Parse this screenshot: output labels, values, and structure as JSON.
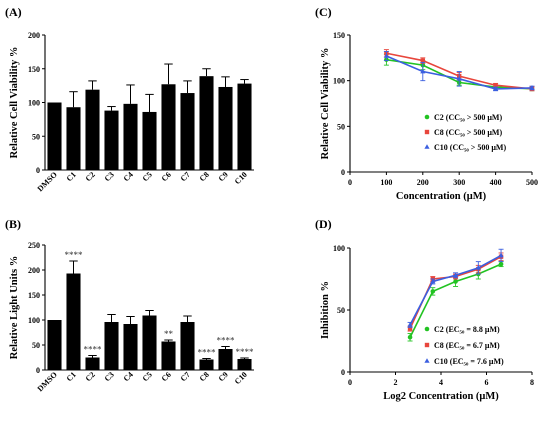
{
  "chart_data": [
    {
      "panel": "(A)",
      "type": "bar",
      "ylabel": "Relative Cell Viability %",
      "ylim": [
        0,
        200
      ],
      "yticks": [
        0,
        50,
        100,
        150,
        200
      ],
      "categories": [
        "DMSO",
        "C1",
        "C2",
        "C3",
        "C4",
        "C5",
        "C6",
        "C7",
        "C8",
        "C9",
        "C10"
      ],
      "values": [
        100,
        93,
        119,
        88,
        98,
        86,
        127,
        114,
        139,
        123,
        128
      ],
      "errors": [
        0,
        23,
        13,
        6,
        28,
        26,
        30,
        18,
        11,
        15,
        6
      ]
    },
    {
      "panel": "(B)",
      "type": "bar",
      "ylabel": "Relative Light Units %",
      "ylim": [
        0,
        250
      ],
      "yticks": [
        0,
        50,
        100,
        150,
        200,
        250
      ],
      "categories": [
        "DMSO",
        "C1",
        "C2",
        "C3",
        "C4",
        "C5",
        "C6",
        "C7",
        "C8",
        "C9",
        "C10"
      ],
      "values": [
        100,
        193,
        25,
        96,
        92,
        109,
        57,
        96,
        21,
        42,
        22
      ],
      "errors": [
        0,
        25,
        4,
        15,
        15,
        10,
        3,
        12,
        2,
        5,
        2
      ],
      "significance": [
        "",
        "****",
        "****",
        "",
        "",
        "",
        "**",
        "",
        "****",
        "****",
        "****"
      ]
    },
    {
      "panel": "(C)",
      "type": "line",
      "xlabel": "Concentration (μM)",
      "ylabel": "Relative Cell Viability %",
      "xlim": [
        0,
        500
      ],
      "ylim": [
        0,
        150
      ],
      "xticks": [
        0,
        100,
        200,
        300,
        400,
        500
      ],
      "yticks": [
        0,
        50,
        100,
        150
      ],
      "x": [
        100,
        200,
        300,
        400,
        500
      ],
      "series": [
        {
          "name": "C2 (CC₅₀ > 500 μM)",
          "color": "#22c322",
          "marker": "circle",
          "values": [
            123,
            117,
            98,
            93,
            91
          ],
          "errors": [
            6,
            5,
            3,
            2,
            2
          ]
        },
        {
          "name": "C8 (CC₅₀ > 500 μM)",
          "color": "#e8463c",
          "marker": "square",
          "values": [
            130,
            122,
            105,
            95,
            91
          ],
          "errors": [
            4,
            3,
            4,
            2,
            2
          ]
        },
        {
          "name": "C10 (CC₅₀ > 500 μM)",
          "color": "#3b5fe0",
          "marker": "triangle",
          "values": [
            127,
            110,
            102,
            91,
            92
          ],
          "errors": [
            5,
            10,
            8,
            2,
            2
          ]
        }
      ],
      "legend": "right"
    },
    {
      "panel": "(D)",
      "type": "line",
      "xlabel": "Log2 Concentration (μM)",
      "ylabel": "Inhibition  %",
      "xlim": [
        0,
        8
      ],
      "ylim": [
        0,
        100
      ],
      "xticks": [
        0,
        2,
        4,
        6,
        8
      ],
      "yticks": [
        0,
        50,
        100
      ],
      "x": [
        2.64,
        3.64,
        4.64,
        5.64,
        6.64
      ],
      "series": [
        {
          "name": "C2 (EC₅₀ = 8.8 μM)",
          "color": "#22c322",
          "marker": "circle",
          "values": [
            28,
            65,
            73,
            79,
            87
          ],
          "errors": [
            3,
            3,
            4,
            4,
            2
          ]
        },
        {
          "name": "C8 (EC₅₀ = 6.7 μM)",
          "color": "#e8463c",
          "marker": "square",
          "values": [
            35,
            75,
            77,
            83,
            93
          ],
          "errors": [
            2,
            2,
            2,
            3,
            3
          ]
        },
        {
          "name": "C10 (EC₅₀ = 7.6 μM)",
          "color": "#3b5fe0",
          "marker": "triangle",
          "values": [
            38,
            73,
            78,
            84,
            94
          ],
          "errors": [
            2,
            2,
            2,
            5,
            5
          ]
        }
      ],
      "legend": "right"
    }
  ]
}
